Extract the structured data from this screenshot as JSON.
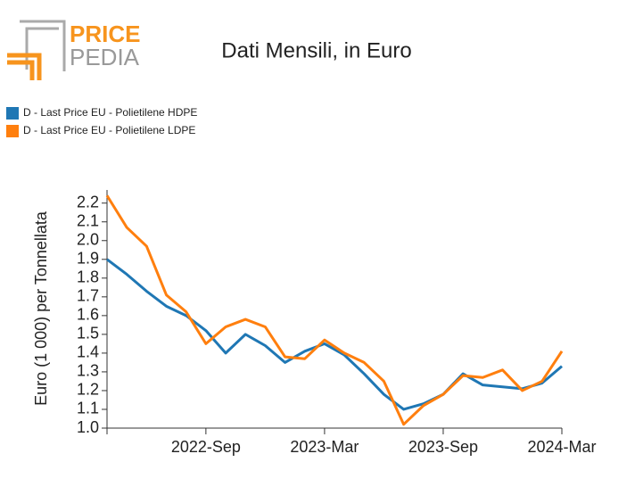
{
  "logo": {
    "top": "PRICE",
    "bottom": "PEDIA"
  },
  "chart_data": {
    "type": "line",
    "title": "Dati Mensili, in Euro",
    "y_label": "Euro (1 000) per Tonnellata",
    "categories": [
      null,
      null,
      null,
      null,
      null,
      "2022-Sep",
      null,
      null,
      null,
      null,
      null,
      "2023-Mar",
      null,
      null,
      null,
      null,
      null,
      "2023-Sep",
      null,
      null,
      null,
      null,
      null,
      "2024-Mar"
    ],
    "series": [
      {
        "name": "D - Last Price EU - Polietilene HDPE",
        "color": "#1f77b4",
        "values": [
          1.9,
          1.82,
          1.73,
          1.65,
          1.6,
          1.52,
          1.4,
          1.5,
          1.44,
          1.35,
          1.41,
          1.45,
          1.39,
          1.29,
          1.18,
          1.1,
          1.13,
          1.18,
          1.29,
          1.23,
          1.22,
          1.21,
          1.24,
          1.33
        ]
      },
      {
        "name": "D - Last Price EU - Polietilene LDPE",
        "color": "#ff7f0e",
        "values": [
          2.24,
          2.07,
          1.97,
          1.71,
          1.62,
          1.45,
          1.54,
          1.58,
          1.54,
          1.38,
          1.37,
          1.47,
          1.4,
          1.35,
          1.25,
          1.02,
          1.12,
          1.18,
          1.28,
          1.27,
          1.31,
          1.2,
          1.25,
          1.41
        ]
      }
    ],
    "ylim": [
      1.0,
      2.27
    ],
    "yticks": [
      {
        "value": 1.0,
        "label": "1.0"
      },
      1.1,
      1.2,
      1.3,
      1.4,
      1.5,
      1.6,
      1.7,
      1.8,
      1.9,
      {
        "value": 2.0,
        "label": "2.0"
      },
      2.1,
      2.2
    ],
    "legend": "top-left",
    "grid": false
  }
}
